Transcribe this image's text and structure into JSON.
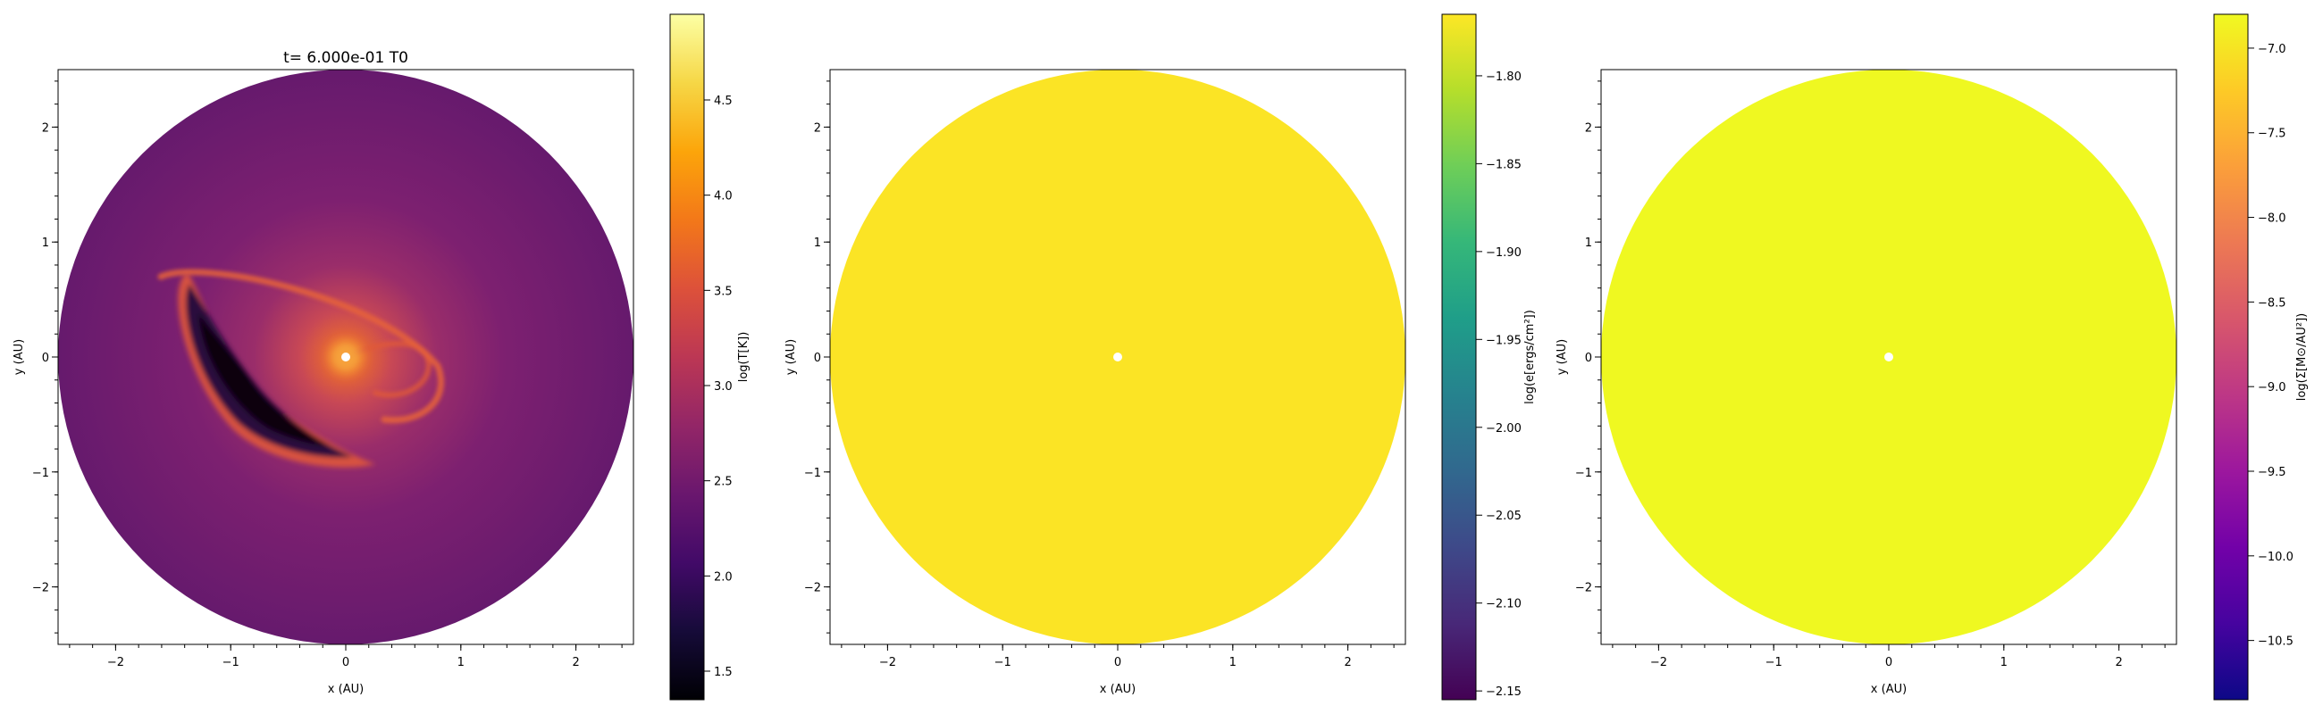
{
  "chart_data": [
    {
      "type": "heatmap",
      "title": "t= 6.000e-01 T0",
      "xlabel": "x (AU)",
      "ylabel": "y (AU)",
      "xlim": [
        -2.5,
        2.5
      ],
      "ylim": [
        -2.5,
        2.5
      ],
      "xticks": [
        "−2",
        "−1",
        "0",
        "1",
        "2"
      ],
      "yticks": [
        "−2",
        "−1",
        "0",
        "1",
        "2"
      ],
      "disk_radius": 2.5,
      "colormap": "inferno",
      "colorbar": {
        "label": "log(T[K])",
        "range": [
          1.35,
          4.95
        ],
        "ticks": [
          "1.5",
          "2.0",
          "2.5",
          "3.0",
          "3.5",
          "4.0",
          "4.5"
        ]
      },
      "features": [
        {
          "kind": "hot core",
          "center": [
            0,
            0
          ],
          "value": 3.7
        },
        {
          "kind": "background disk",
          "value": 2.6
        },
        {
          "kind": "cold crescent arm",
          "value": 1.6
        },
        {
          "kind": "spiral arm",
          "value": 3.3
        }
      ]
    },
    {
      "type": "heatmap",
      "title": "",
      "xlabel": "x (AU)",
      "ylabel": "y (AU)",
      "xlim": [
        -2.5,
        2.5
      ],
      "ylim": [
        -2.5,
        2.5
      ],
      "xticks": [
        "−2",
        "−1",
        "0",
        "1",
        "2"
      ],
      "yticks": [
        "−2",
        "−1",
        "0",
        "1",
        "2"
      ],
      "disk_radius": 2.5,
      "colormap": "viridis",
      "fill_value": -1.765,
      "colorbar": {
        "label": "log(e[ergs/cm²])",
        "range": [
          -2.155,
          -1.765
        ],
        "ticks": [
          "−2.15",
          "−2.10",
          "−2.05",
          "−2.00",
          "−1.95",
          "−1.90",
          "−1.85",
          "−1.80"
        ]
      }
    },
    {
      "type": "heatmap",
      "title": "",
      "xlabel": "x (AU)",
      "ylabel": "y (AU)",
      "xlim": [
        -2.5,
        2.5
      ],
      "ylim": [
        -2.5,
        2.5
      ],
      "xticks": [
        "−2",
        "−1",
        "0",
        "1",
        "2"
      ],
      "yticks": [
        "−2",
        "−1",
        "0",
        "1",
        "2"
      ],
      "disk_radius": 2.5,
      "colormap": "plasma",
      "fill_value": -6.8,
      "colorbar": {
        "label": "log(Σ[M⊙/AU²])",
        "range": [
          -10.85,
          -6.8
        ],
        "ticks": [
          "−10.5",
          "−10.0",
          "−9.5",
          "−9.0",
          "−8.5",
          "−8.0",
          "−7.5",
          "−7.0"
        ]
      }
    }
  ]
}
